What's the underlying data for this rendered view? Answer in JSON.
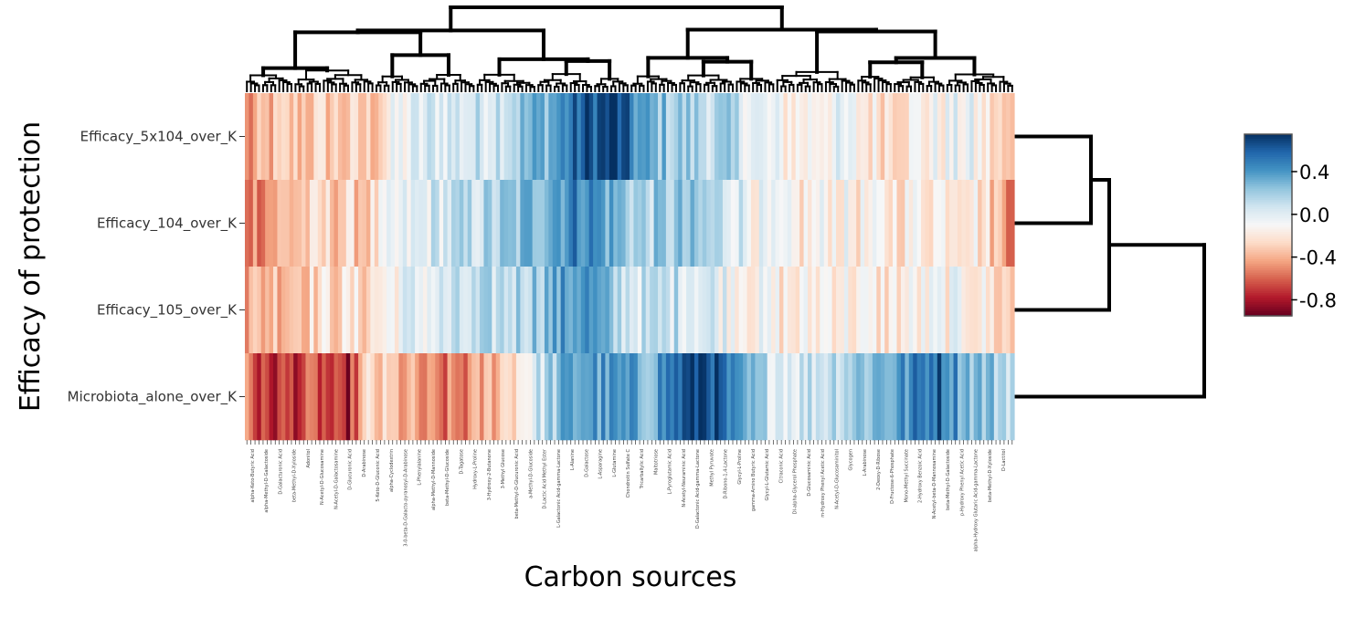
{
  "chart_data": {
    "type": "heatmap",
    "xlabel": "Carbon sources",
    "ylabel": "Efficacy of protection",
    "rows": [
      "Efficacy_5x104_over_K",
      "Efficacy_104_over_K",
      "Efficacy_105_over_K",
      "Microbiota_alone_over_K"
    ],
    "n_columns": 190,
    "column_labels": [
      "alpha-Keto-Butyric Acid",
      "alpha-Methyl-D-Galactoside",
      "D-Galacturonic Acid",
      "beta-Methyl-D-Xyloside",
      "Adonitol",
      "N-Acetyl-D-Glucosamine",
      "N-Acetyl-D-Galactosamine",
      "D-Glucuronic Acid",
      "D-Arabinose",
      "5-Keto-D-Gluconic Acid",
      "alpha-Cyclodextrin",
      "3-0-beta-D-Galacto-pyranosyl-D-Arabinose",
      "L-Phenylalanine",
      "alpha-Methyl-D-Mannoside",
      "beta-Methyl-D-Glucoside",
      "D-Tagatose",
      "Hydroxy-L-Proline",
      "3-Hydroxy-2-Butanone",
      "3-Methyl Glucose",
      "beta-Methyl-D-Glucuronic Acid",
      "a-Methyl-D-Glucoside",
      "D-Lactic Acid Methyl Ester",
      "L-Galactonic Acid-gamma-Lactone",
      "L-Alanine",
      "D-Galactose",
      "L-Asparagine",
      "L-Glutamine",
      "Chondroitin Sulfate C",
      "Tricarballylic Acid",
      "Maltotriose",
      "L-Pyroglutamic Acid",
      "N-Acetyl-Neuraminic Acid",
      "D-Galactonic Acid-gamma-Lactone",
      "Methyl Pyruvate",
      "D-Ribono-1,4-Lactone",
      "Glycyl-L-Proline",
      "gamma-Amino Butyric Acid",
      "Glycyl-L-Glutamic Acid",
      "Citraconic Acid",
      "Dl-alpha-Glycerol Phosphate",
      "D-Glucosaminic Acid",
      "m-Hydroxy Phenyl Acetic Acid",
      "N-Acetyl-D-Glucosaminitol",
      "Glycogen",
      "L-Arabinose",
      "2-Deoxy-D-Ribose",
      "D-Fructose-6-Phosphate",
      "Mono-Methyl Succinate",
      "2-Hydroxy Benzoic Acid",
      "N-Acetyl-beta-D-Mannosamine",
      "beta-Methyl-D-Galactoside",
      "p-Hydroxy Phenyl Acetic Acid",
      "alpha-Hydroxy Glutaric Acid-gamma-Lactone",
      "beta-Methyl-D-Xyloside",
      "D-Lactitol"
    ],
    "row_order": [
      "Efficacy_5x104_over_K",
      "Efficacy_104_over_K",
      "Efficacy_105_over_K",
      "Microbiota_alone_over_K"
    ],
    "row_profiles": [
      [
        [
          0.0,
          -0.55
        ],
        [
          0.03,
          -0.4
        ],
        [
          0.06,
          -0.35
        ],
        [
          0.1,
          -0.3
        ],
        [
          0.16,
          -0.35
        ],
        [
          0.2,
          -0.1
        ],
        [
          0.25,
          0.05
        ],
        [
          0.3,
          0.05
        ],
        [
          0.35,
          0.2
        ],
        [
          0.4,
          0.35
        ],
        [
          0.44,
          0.6
        ],
        [
          0.48,
          0.7
        ],
        [
          0.52,
          0.3
        ],
        [
          0.56,
          0.2
        ],
        [
          0.6,
          0.15
        ],
        [
          0.64,
          0.1
        ],
        [
          0.68,
          -0.1
        ],
        [
          0.72,
          -0.15
        ],
        [
          0.76,
          -0.05
        ],
        [
          0.82,
          -0.2
        ],
        [
          0.88,
          -0.15
        ],
        [
          0.94,
          -0.05
        ],
        [
          1.0,
          -0.45
        ]
      ],
      [
        [
          0.0,
          -0.5
        ],
        [
          0.03,
          -0.45
        ],
        [
          0.06,
          -0.35
        ],
        [
          0.1,
          -0.3
        ],
        [
          0.16,
          -0.3
        ],
        [
          0.2,
          -0.1
        ],
        [
          0.25,
          0.05
        ],
        [
          0.3,
          0.1
        ],
        [
          0.35,
          0.2
        ],
        [
          0.4,
          0.4
        ],
        [
          0.44,
          0.5
        ],
        [
          0.48,
          0.3
        ],
        [
          0.52,
          0.15
        ],
        [
          0.56,
          0.2
        ],
        [
          0.6,
          0.15
        ],
        [
          0.64,
          0.05
        ],
        [
          0.68,
          -0.15
        ],
        [
          0.72,
          -0.2
        ],
        [
          0.76,
          -0.1
        ],
        [
          0.82,
          -0.2
        ],
        [
          0.88,
          -0.15
        ],
        [
          0.94,
          -0.1
        ],
        [
          1.0,
          -0.5
        ]
      ],
      [
        [
          0.0,
          -0.45
        ],
        [
          0.03,
          -0.35
        ],
        [
          0.06,
          -0.3
        ],
        [
          0.1,
          -0.25
        ],
        [
          0.16,
          -0.25
        ],
        [
          0.2,
          -0.05
        ],
        [
          0.25,
          0.0
        ],
        [
          0.3,
          0.05
        ],
        [
          0.35,
          0.15
        ],
        [
          0.4,
          0.3
        ],
        [
          0.44,
          0.45
        ],
        [
          0.48,
          0.15
        ],
        [
          0.52,
          0.05
        ],
        [
          0.56,
          0.1
        ],
        [
          0.6,
          0.05
        ],
        [
          0.64,
          -0.05
        ],
        [
          0.68,
          -0.15
        ],
        [
          0.72,
          -0.2
        ],
        [
          0.76,
          -0.1
        ],
        [
          0.82,
          -0.2
        ],
        [
          0.88,
          -0.15
        ],
        [
          0.94,
          -0.1
        ],
        [
          1.0,
          -0.35
        ]
      ],
      [
        [
          0.0,
          -0.35
        ],
        [
          0.02,
          -0.75
        ],
        [
          0.06,
          -0.7
        ],
        [
          0.1,
          -0.65
        ],
        [
          0.13,
          -0.85
        ],
        [
          0.16,
          -0.3
        ],
        [
          0.2,
          -0.4
        ],
        [
          0.25,
          -0.6
        ],
        [
          0.3,
          -0.5
        ],
        [
          0.35,
          -0.2
        ],
        [
          0.4,
          0.2
        ],
        [
          0.44,
          0.4
        ],
        [
          0.48,
          0.35
        ],
        [
          0.52,
          0.3
        ],
        [
          0.56,
          0.55
        ],
        [
          0.6,
          0.75
        ],
        [
          0.64,
          0.3
        ],
        [
          0.68,
          0.1
        ],
        [
          0.72,
          0.05
        ],
        [
          0.76,
          0.15
        ],
        [
          0.82,
          0.3
        ],
        [
          0.86,
          0.4
        ],
        [
          0.9,
          0.6
        ],
        [
          0.94,
          0.3
        ],
        [
          1.0,
          0.15
        ]
      ]
    ],
    "colorbar": {
      "colors": [
        "#67001f",
        "#b2182b",
        "#d6604d",
        "#f4a582",
        "#fddbc7",
        "#f7f7f7",
        "#d1e5f0",
        "#92c5de",
        "#4393c3",
        "#2166ac",
        "#053061"
      ],
      "range": [
        -0.95,
        0.75
      ],
      "ticks": [
        "0.4",
        "0.0",
        "-0.4",
        "-0.8"
      ],
      "tick_values": [
        0.4,
        0.0,
        -0.4,
        -0.8
      ]
    },
    "column_dendrogram": true,
    "row_dendrogram": true
  }
}
